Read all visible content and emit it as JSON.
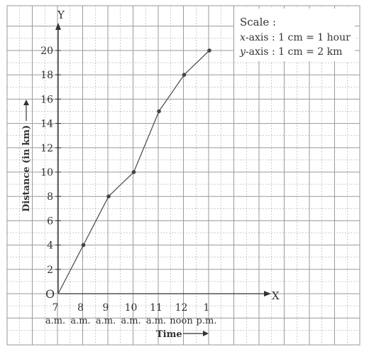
{
  "chart_data": {
    "type": "line",
    "x_ticks": [
      {
        "num": "7",
        "suffix": "a.m."
      },
      {
        "num": "8",
        "suffix": "a.m."
      },
      {
        "num": "9",
        "suffix": "a.m."
      },
      {
        "num": "10",
        "suffix": "a.m."
      },
      {
        "num": "11",
        "suffix": "a.m."
      },
      {
        "num": "12",
        "suffix": "noon"
      },
      {
        "num": "1",
        "suffix": "p.m."
      }
    ],
    "x": [
      0,
      1,
      2,
      3,
      4,
      5,
      6
    ],
    "values": [
      0,
      4,
      8,
      10,
      15,
      18,
      20
    ],
    "y_ticks": [
      2,
      4,
      6,
      8,
      10,
      12,
      14,
      16,
      18,
      20
    ],
    "ylim": [
      0,
      22
    ],
    "xlabel": "Time",
    "ylabel": "Distance (in km)",
    "origin_label": "O",
    "x_axis_letter": "X",
    "y_axis_letter": "Y",
    "grid": true,
    "line_color": "#555555",
    "grid_color": "#9a9a9a"
  },
  "scale_box": {
    "title": "Scale :",
    "x_axis_var": "x",
    "x_axis_rest": "-axis : 1 cm = 1 hour",
    "y_axis_var": "y",
    "y_axis_rest": "-axis : 1 cm = 2 km"
  }
}
